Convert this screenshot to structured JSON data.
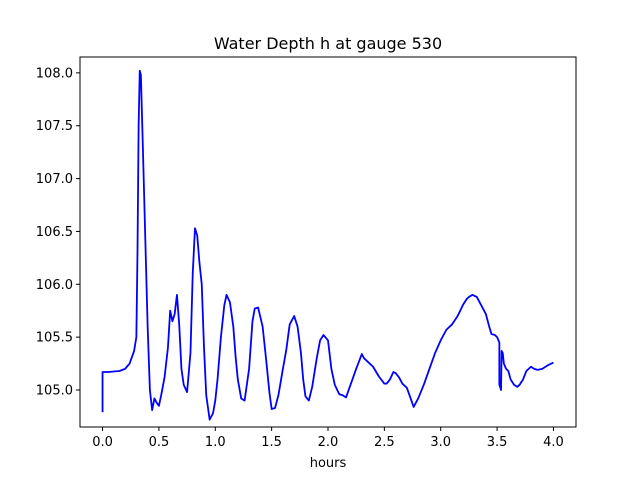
{
  "chart_data": {
    "type": "line",
    "title": "Water Depth h at gauge 530",
    "xlabel": "hours",
    "ylabel": "",
    "xlim": [
      -0.2,
      4.2
    ],
    "ylim": [
      104.65,
      108.15
    ],
    "xticks": [
      "0.0",
      "0.5",
      "1.0",
      "1.5",
      "2.0",
      "2.5",
      "3.0",
      "3.5",
      "4.0"
    ],
    "yticks": [
      "105.0",
      "105.5",
      "106.0",
      "106.5",
      "107.0",
      "107.5",
      "108.0"
    ],
    "grid": false,
    "legend": "none",
    "series": [
      {
        "color": "#0000ff",
        "x": [
          0.0,
          0.0,
          0.05,
          0.1,
          0.15,
          0.2,
          0.24,
          0.28,
          0.3,
          0.31,
          0.32,
          0.33,
          0.34,
          0.35,
          0.38,
          0.4,
          0.42,
          0.44,
          0.46,
          0.48,
          0.5,
          0.52,
          0.55,
          0.58,
          0.6,
          0.62,
          0.64,
          0.66,
          0.68,
          0.7,
          0.72,
          0.75,
          0.78,
          0.8,
          0.82,
          0.84,
          0.86,
          0.87,
          0.88,
          0.9,
          0.92,
          0.95,
          0.98,
          1.0,
          1.02,
          1.05,
          1.08,
          1.1,
          1.13,
          1.16,
          1.18,
          1.2,
          1.23,
          1.26,
          1.3,
          1.33,
          1.35,
          1.38,
          1.42,
          1.45,
          1.48,
          1.5,
          1.53,
          1.56,
          1.6,
          1.63,
          1.66,
          1.7,
          1.73,
          1.76,
          1.78,
          1.8,
          1.83,
          1.86,
          1.9,
          1.93,
          1.96,
          2.0,
          2.03,
          2.06,
          2.1,
          2.13,
          2.16,
          2.2,
          2.25,
          2.3,
          2.32,
          2.35,
          2.4,
          2.45,
          2.5,
          2.52,
          2.55,
          2.58,
          2.6,
          2.63,
          2.66,
          2.7,
          2.73,
          2.76,
          2.8,
          2.85,
          2.9,
          2.95,
          3.0,
          3.05,
          3.1,
          3.15,
          3.2,
          3.23,
          3.25,
          3.28,
          3.32,
          3.36,
          3.4,
          3.43,
          3.45,
          3.48,
          3.5,
          3.52,
          3.52,
          3.53,
          3.535,
          3.54,
          3.55,
          3.56,
          3.58,
          3.6,
          3.62,
          3.65,
          3.68,
          3.7,
          3.73,
          3.76,
          3.8,
          3.83,
          3.86,
          3.9,
          3.93,
          3.96,
          4.0
        ],
        "y": [
          104.79,
          105.17,
          105.17,
          105.175,
          105.18,
          105.2,
          105.25,
          105.37,
          105.5,
          106.3,
          107.5,
          108.02,
          107.98,
          107.6,
          106.4,
          105.6,
          105.0,
          104.81,
          104.92,
          104.88,
          104.85,
          104.95,
          105.12,
          105.4,
          105.75,
          105.65,
          105.72,
          105.9,
          105.62,
          105.2,
          105.05,
          104.98,
          105.35,
          106.1,
          106.53,
          106.46,
          106.2,
          106.1,
          106.0,
          105.4,
          104.95,
          104.72,
          104.78,
          104.9,
          105.1,
          105.5,
          105.8,
          105.9,
          105.83,
          105.6,
          105.32,
          105.1,
          104.92,
          104.9,
          105.2,
          105.65,
          105.77,
          105.78,
          105.6,
          105.3,
          104.98,
          104.82,
          104.83,
          104.95,
          105.2,
          105.38,
          105.62,
          105.7,
          105.6,
          105.35,
          105.1,
          104.94,
          104.9,
          105.03,
          105.3,
          105.47,
          105.52,
          105.47,
          105.2,
          105.05,
          104.96,
          104.95,
          104.93,
          105.05,
          105.2,
          105.34,
          105.3,
          105.27,
          105.22,
          105.13,
          105.06,
          105.06,
          105.1,
          105.17,
          105.16,
          105.12,
          105.06,
          105.02,
          104.93,
          104.84,
          104.92,
          105.05,
          105.2,
          105.35,
          105.47,
          105.57,
          105.62,
          105.7,
          105.81,
          105.86,
          105.88,
          105.9,
          105.88,
          105.8,
          105.72,
          105.6,
          105.53,
          105.52,
          105.5,
          105.45,
          105.05,
          105.02,
          105.0,
          105.37,
          105.35,
          105.25,
          105.2,
          105.18,
          105.1,
          105.05,
          105.03,
          105.05,
          105.1,
          105.18,
          105.22,
          105.2,
          105.19,
          105.2,
          105.22,
          105.24,
          105.26
        ]
      }
    ]
  }
}
